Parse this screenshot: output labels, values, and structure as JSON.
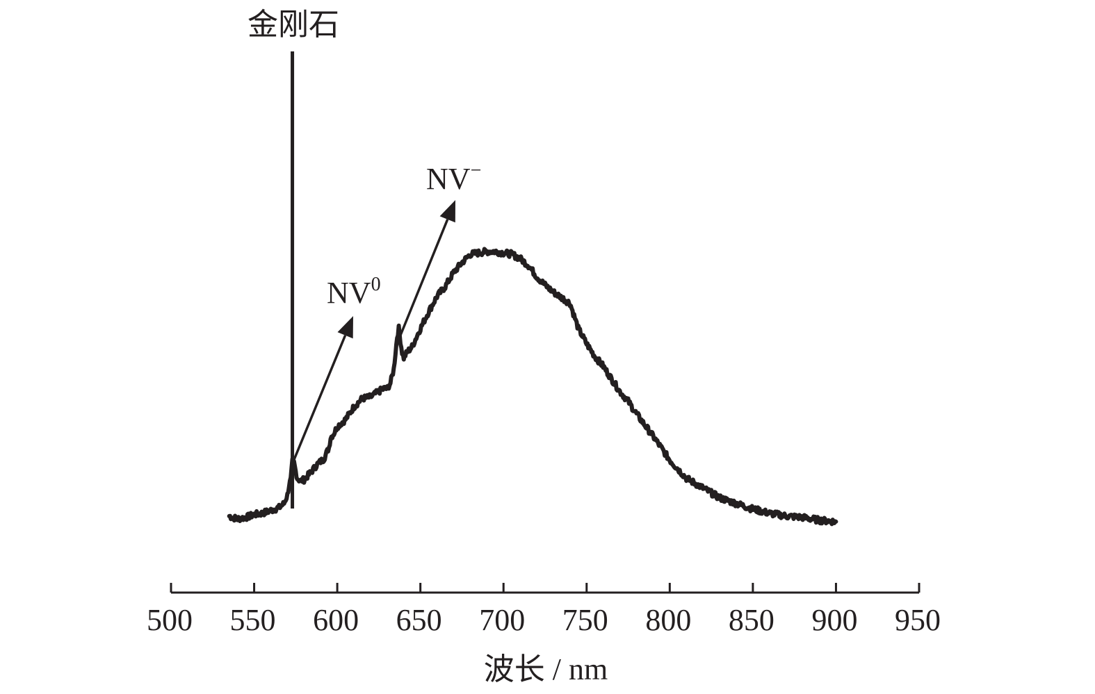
{
  "chart_data": {
    "type": "line",
    "title": "",
    "xlabel": "波长 / nm",
    "ylabel": "",
    "xlim": [
      500,
      950
    ],
    "xticks": [
      500,
      550,
      600,
      650,
      700,
      750,
      800,
      850,
      900,
      950
    ],
    "y_axis_shown": false,
    "grid": false,
    "line_color": "#231f20",
    "series": [
      {
        "x": [
          535,
          537,
          540,
          545,
          550,
          555,
          560,
          565,
          568,
          570,
          571,
          572,
          573,
          574,
          575,
          576,
          578,
          580,
          584,
          588,
          592,
          595,
          596,
          598,
          600,
          605,
          610,
          615,
          620,
          625,
          628,
          630,
          632,
          634,
          636,
          637,
          638,
          639,
          640,
          642,
          645,
          650,
          655,
          660,
          665,
          670,
          675,
          680,
          685,
          690,
          695,
          700,
          705,
          710,
          715,
          720,
          725,
          730,
          735,
          740,
          745,
          750,
          755,
          760,
          765,
          770,
          775,
          780,
          790,
          800,
          810,
          820,
          830,
          840,
          850,
          860,
          870,
          880,
          890,
          900
        ],
        "y": [
          5.5,
          5.0,
          4.5,
          5.0,
          6.0,
          6.5,
          7.5,
          8.5,
          10.0,
          13.0,
          16.5,
          18.5,
          25.0,
          24.5,
          21.5,
          19.0,
          18.0,
          18.5,
          21.0,
          24.0,
          26.0,
          30.0,
          33.5,
          35.0,
          37.5,
          40.0,
          44.5,
          47.5,
          48.0,
          50.0,
          51.0,
          51.0,
          53.0,
          58.0,
          69.5,
          72.5,
          68.0,
          64.0,
          62.0,
          64.0,
          66.0,
          72.5,
          78.5,
          84.0,
          87.5,
          92.5,
          96.0,
          99.0,
          99.5,
          100.0,
          100.0,
          99.5,
          99.0,
          97.5,
          95.0,
          91.0,
          88.0,
          85.5,
          83.5,
          81.5,
          72.5,
          67.0,
          62.5,
          59.0,
          54.5,
          50.0,
          46.5,
          42.0,
          34.0,
          25.5,
          19.0,
          15.5,
          12.0,
          10.0,
          8.0,
          6.5,
          5.5,
          5.0,
          4.0,
          3.5
        ]
      }
    ],
    "annotations": [
      {
        "label": "金刚石",
        "x": 573,
        "position": "top"
      },
      {
        "label": "NV",
        "superscript": "0",
        "x": 575
      },
      {
        "label": "NV",
        "superscript": "−",
        "x": 637
      }
    ]
  }
}
